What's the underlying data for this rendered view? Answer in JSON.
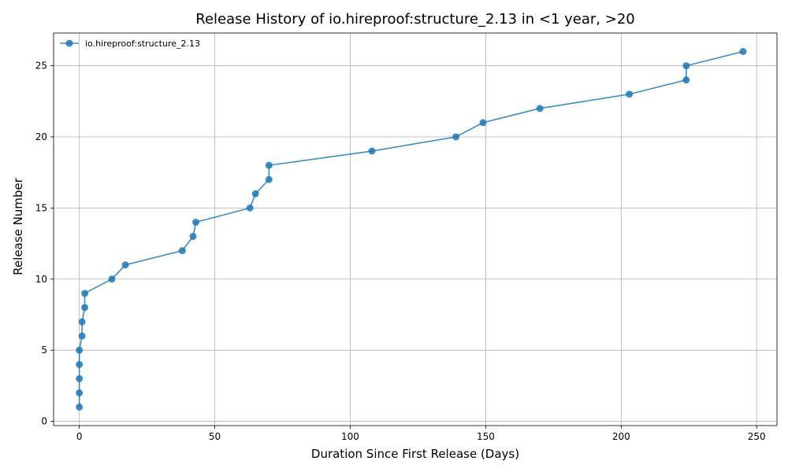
{
  "chart_data": {
    "type": "line",
    "title": "Release History of io.hireproof:structure_2.13 in <1 year, >20",
    "xlabel": "Duration Since First Release (Days)",
    "ylabel": "Release Number",
    "xlim": [
      -9.5,
      257.5
    ],
    "ylim": [
      -0.3,
      27.3
    ],
    "x_ticks": [
      0,
      50,
      100,
      150,
      200,
      250
    ],
    "y_ticks": [
      0,
      5,
      10,
      15,
      20,
      25
    ],
    "grid": true,
    "legend_position": "top-left",
    "series": [
      {
        "name": "io.hireproof:structure_2.13",
        "color": "#1f77b4",
        "marker": "circle",
        "x": [
          0,
          0,
          0,
          0,
          0,
          1,
          1,
          2,
          2,
          12,
          17,
          38,
          42,
          43,
          63,
          65,
          70,
          70,
          108,
          139,
          149,
          170,
          203,
          224,
          224,
          245
        ],
        "y": [
          1,
          2,
          3,
          4,
          5,
          6,
          7,
          8,
          9,
          10,
          11,
          12,
          13,
          14,
          15,
          16,
          17,
          18,
          19,
          20,
          21,
          22,
          23,
          24,
          25,
          26
        ]
      }
    ]
  }
}
